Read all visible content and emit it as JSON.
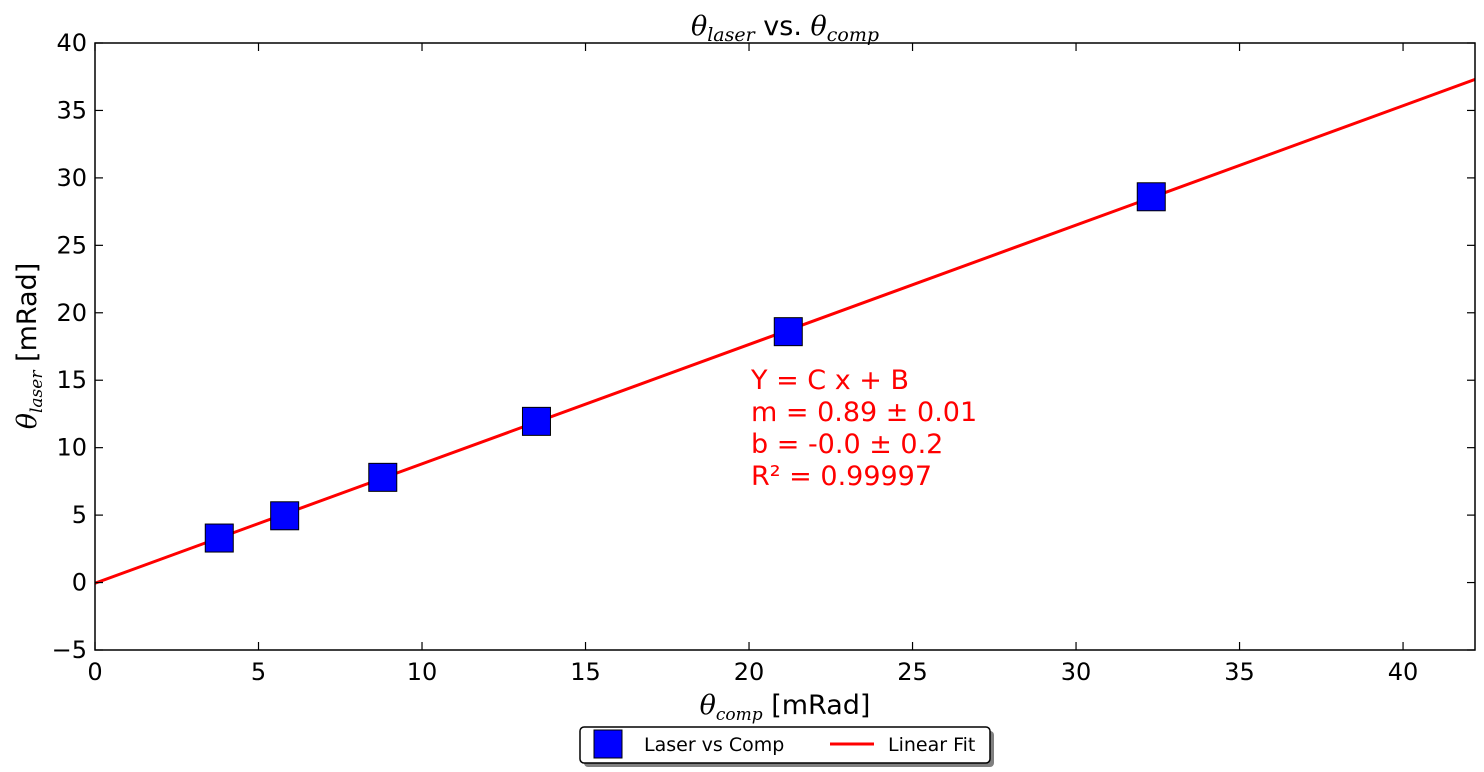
{
  "chart_data": {
    "type": "scatter",
    "title": {
      "sym1": "θ",
      "sub1": "laser",
      "mid": " vs. ",
      "sym2": "θ",
      "sub2": "comp"
    },
    "xlabel": {
      "sym": "θ",
      "sub": "comp",
      "unit": " [mRad]"
    },
    "ylabel": {
      "sym": "θ",
      "sub": "laser",
      "unit": " [mRad]"
    },
    "xlim": [
      0,
      42.2
    ],
    "ylim": [
      -5,
      40
    ],
    "xticks": [
      0,
      5,
      10,
      15,
      20,
      25,
      30,
      35,
      40
    ],
    "yticks": [
      -5,
      0,
      5,
      10,
      15,
      20,
      25,
      30,
      35,
      40
    ],
    "grid": false,
    "series": [
      {
        "name": "Laser vs Comp",
        "kind": "scatter",
        "marker": "square",
        "color": "#0000ff",
        "x": [
          3.8,
          5.8,
          8.8,
          13.5,
          21.2,
          32.3
        ],
        "y": [
          3.3,
          4.95,
          7.8,
          11.95,
          18.6,
          28.6
        ]
      },
      {
        "name": "Linear Fit",
        "kind": "line",
        "color": "#ff0000",
        "slope": 0.885,
        "intercept": -0.05,
        "x": [
          0,
          42.2
        ]
      }
    ],
    "annotation": {
      "color": "#ff0000",
      "anchor": [
        20,
        15
      ],
      "lines": [
        "Y = C x + B",
        "m = 0.89 ± 0.01",
        "b = -0.0 ± 0.2",
        "R² = 0.99997"
      ]
    },
    "legend": {
      "placement": "bottom-center, below the axes"
    }
  }
}
